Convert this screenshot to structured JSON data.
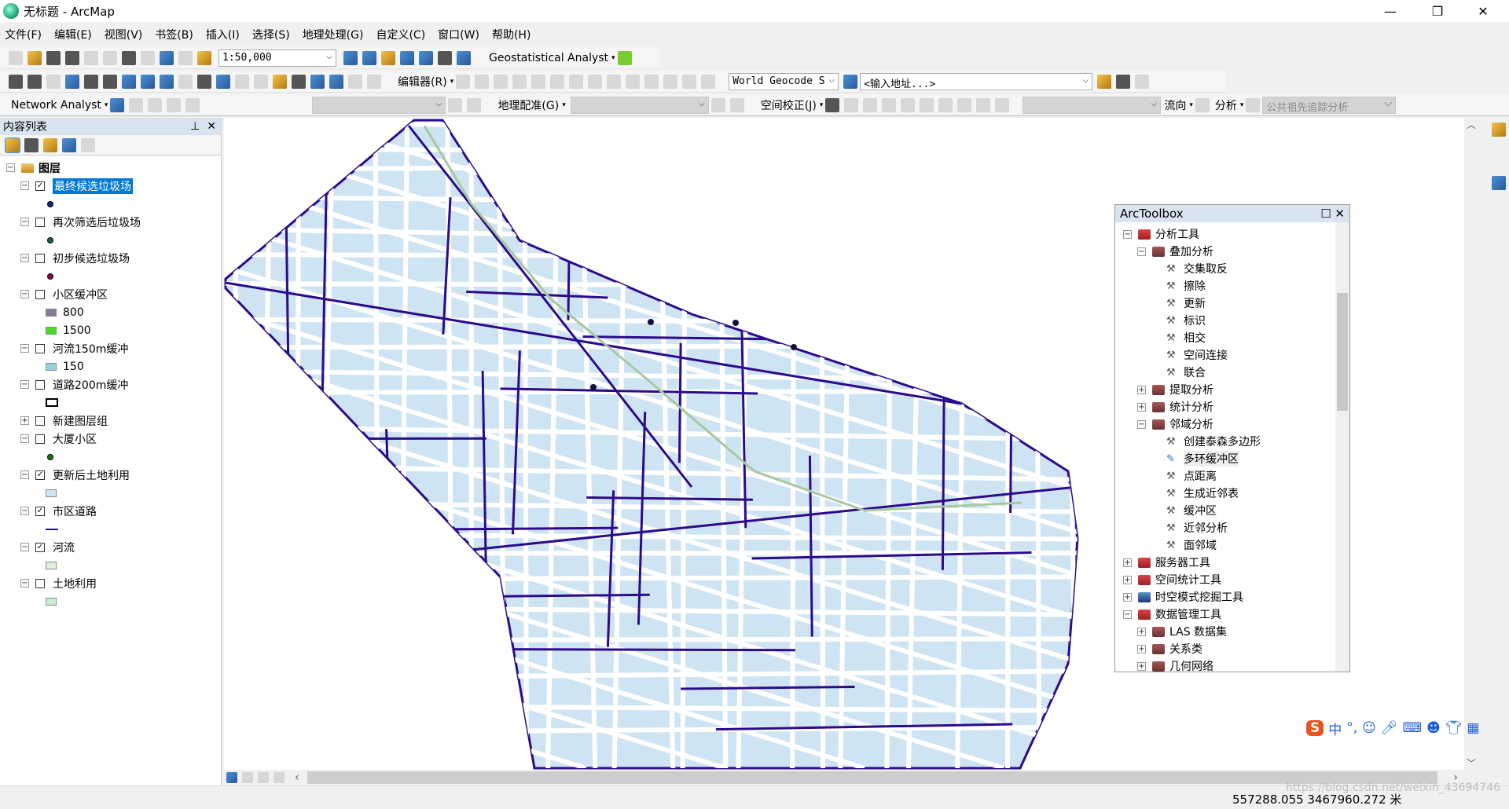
{
  "window": {
    "title": "无标题 - ArcMap",
    "minimize": "—",
    "restore": "❐",
    "close": "✕"
  },
  "menu": [
    "文件(F)",
    "编辑(E)",
    "视图(V)",
    "书签(B)",
    "插入(I)",
    "选择(S)",
    "地理处理(G)",
    "自定义(C)",
    "窗口(W)",
    "帮助(H)"
  ],
  "toolbar": {
    "scale": "1:50,000",
    "geostat": "Geostatistical Analyst",
    "editor": "编辑器(R)",
    "geocode_service": "World Geocode S",
    "address_placeholder": "<输入地址...>",
    "network": "Network Analyst",
    "georef": "地理配准(G)",
    "spatial_adjust": "空间校正(J)",
    "flow": "流向",
    "analysis": "分析",
    "trace_task": "公共祖先追踪分析"
  },
  "toc": {
    "title": "内容列表",
    "root": "图层",
    "layers": [
      {
        "name": "最终候选垃圾场",
        "checked": true,
        "selected": true,
        "expanded": true,
        "legend": [
          {
            "type": "dot",
            "color": "#1a237e",
            "label": ""
          }
        ]
      },
      {
        "name": "再次筛选后垃圾场",
        "checked": false,
        "expanded": true,
        "legend": [
          {
            "type": "dot",
            "color": "#0b6b4a",
            "label": ""
          }
        ]
      },
      {
        "name": "初步候选垃圾场",
        "checked": false,
        "expanded": true,
        "legend": [
          {
            "type": "dot",
            "color": "#8a0a4a",
            "label": ""
          }
        ]
      },
      {
        "name": "小区缓冲区",
        "checked": false,
        "expanded": true,
        "legend": [
          {
            "type": "fill",
            "color": "#8a7a9a",
            "label": "800"
          },
          {
            "type": "fill",
            "color": "#44dd22",
            "label": "1500"
          }
        ]
      },
      {
        "name": "河流150m缓冲",
        "checked": false,
        "expanded": true,
        "legend": [
          {
            "type": "fill",
            "color": "#90d4dc",
            "label": "150"
          }
        ]
      },
      {
        "name": "道路200m缓冲",
        "checked": false,
        "expanded": true,
        "legend": [
          {
            "type": "outline",
            "color": "#000000",
            "label": ""
          }
        ]
      },
      {
        "name": "新建图层组",
        "checked": false,
        "expanded": false,
        "legend": []
      },
      {
        "name": "大厦小区",
        "checked": false,
        "expanded": true,
        "legend": [
          {
            "type": "dot",
            "color": "#1a7a1a",
            "label": ""
          }
        ]
      },
      {
        "name": "更新后土地利用",
        "checked": true,
        "expanded": true,
        "legend": [
          {
            "type": "fill",
            "color": "#cfe4f2",
            "label": ""
          }
        ]
      },
      {
        "name": "市区道路",
        "checked": true,
        "expanded": true,
        "legend": [
          {
            "type": "line",
            "color": "#2b0b8a",
            "label": ""
          }
        ]
      },
      {
        "name": "河流",
        "checked": true,
        "expanded": true,
        "legend": [
          {
            "type": "fill",
            "color": "#dff2d8",
            "label": ""
          }
        ]
      },
      {
        "name": "土地利用",
        "checked": false,
        "expanded": true,
        "legend": [
          {
            "type": "fill",
            "color": "#c8f0d0",
            "label": ""
          }
        ]
      }
    ]
  },
  "toolbox": {
    "title": "ArcToolbox",
    "items": [
      {
        "level": 0,
        "exp": "−",
        "icon": "toolbox",
        "label": "分析工具"
      },
      {
        "level": 1,
        "exp": "−",
        "icon": "toolset",
        "label": "叠加分析"
      },
      {
        "level": 2,
        "icon": "tool",
        "label": "交集取反"
      },
      {
        "level": 2,
        "icon": "tool",
        "label": "擦除"
      },
      {
        "level": 2,
        "icon": "tool",
        "label": "更新"
      },
      {
        "level": 2,
        "icon": "tool",
        "label": "标识"
      },
      {
        "level": 2,
        "icon": "tool",
        "label": "相交"
      },
      {
        "level": 2,
        "icon": "tool",
        "label": "空间连接"
      },
      {
        "level": 2,
        "icon": "tool",
        "label": "联合"
      },
      {
        "level": 1,
        "exp": "+",
        "icon": "toolset",
        "label": "提取分析"
      },
      {
        "level": 1,
        "exp": "+",
        "icon": "toolset",
        "label": "统计分析"
      },
      {
        "level": 1,
        "exp": "−",
        "icon": "toolset",
        "label": "邻域分析"
      },
      {
        "level": 2,
        "icon": "tool",
        "label": "创建泰森多边形"
      },
      {
        "level": 2,
        "icon": "script",
        "label": "多环缓冲区",
        "hover": true
      },
      {
        "level": 2,
        "icon": "tool",
        "label": "点距离"
      },
      {
        "level": 2,
        "icon": "tool",
        "label": "生成近邻表"
      },
      {
        "level": 2,
        "icon": "tool",
        "label": "缓冲区"
      },
      {
        "level": 2,
        "icon": "tool",
        "label": "近邻分析"
      },
      {
        "level": 2,
        "icon": "tool",
        "label": "面邻域"
      },
      {
        "level": 0,
        "exp": "+",
        "icon": "toolbox",
        "label": "服务器工具"
      },
      {
        "level": 0,
        "exp": "+",
        "icon": "toolbox",
        "label": "空间统计工具"
      },
      {
        "level": 0,
        "exp": "+",
        "icon": "toolbox-blue",
        "label": "时空模式挖掘工具"
      },
      {
        "level": 0,
        "exp": "−",
        "icon": "toolbox",
        "label": "数据管理工具"
      },
      {
        "level": 1,
        "exp": "+",
        "icon": "toolset",
        "label": "LAS 数据集"
      },
      {
        "level": 1,
        "exp": "+",
        "icon": "toolset",
        "label": "关系类"
      },
      {
        "level": 1,
        "exp": "+",
        "icon": "toolset",
        "label": "几何网络"
      }
    ]
  },
  "status": {
    "coords": "557288.055  3467960.272 米",
    "watermark": "https://blog.csdn.net/weixin_43694746"
  },
  "colors": {
    "landuse": "#cfe4f2",
    "road": "#2b0b8a",
    "river": "#dff2d8",
    "selection": "#0078d7"
  },
  "ime": {
    "lang": "中"
  }
}
